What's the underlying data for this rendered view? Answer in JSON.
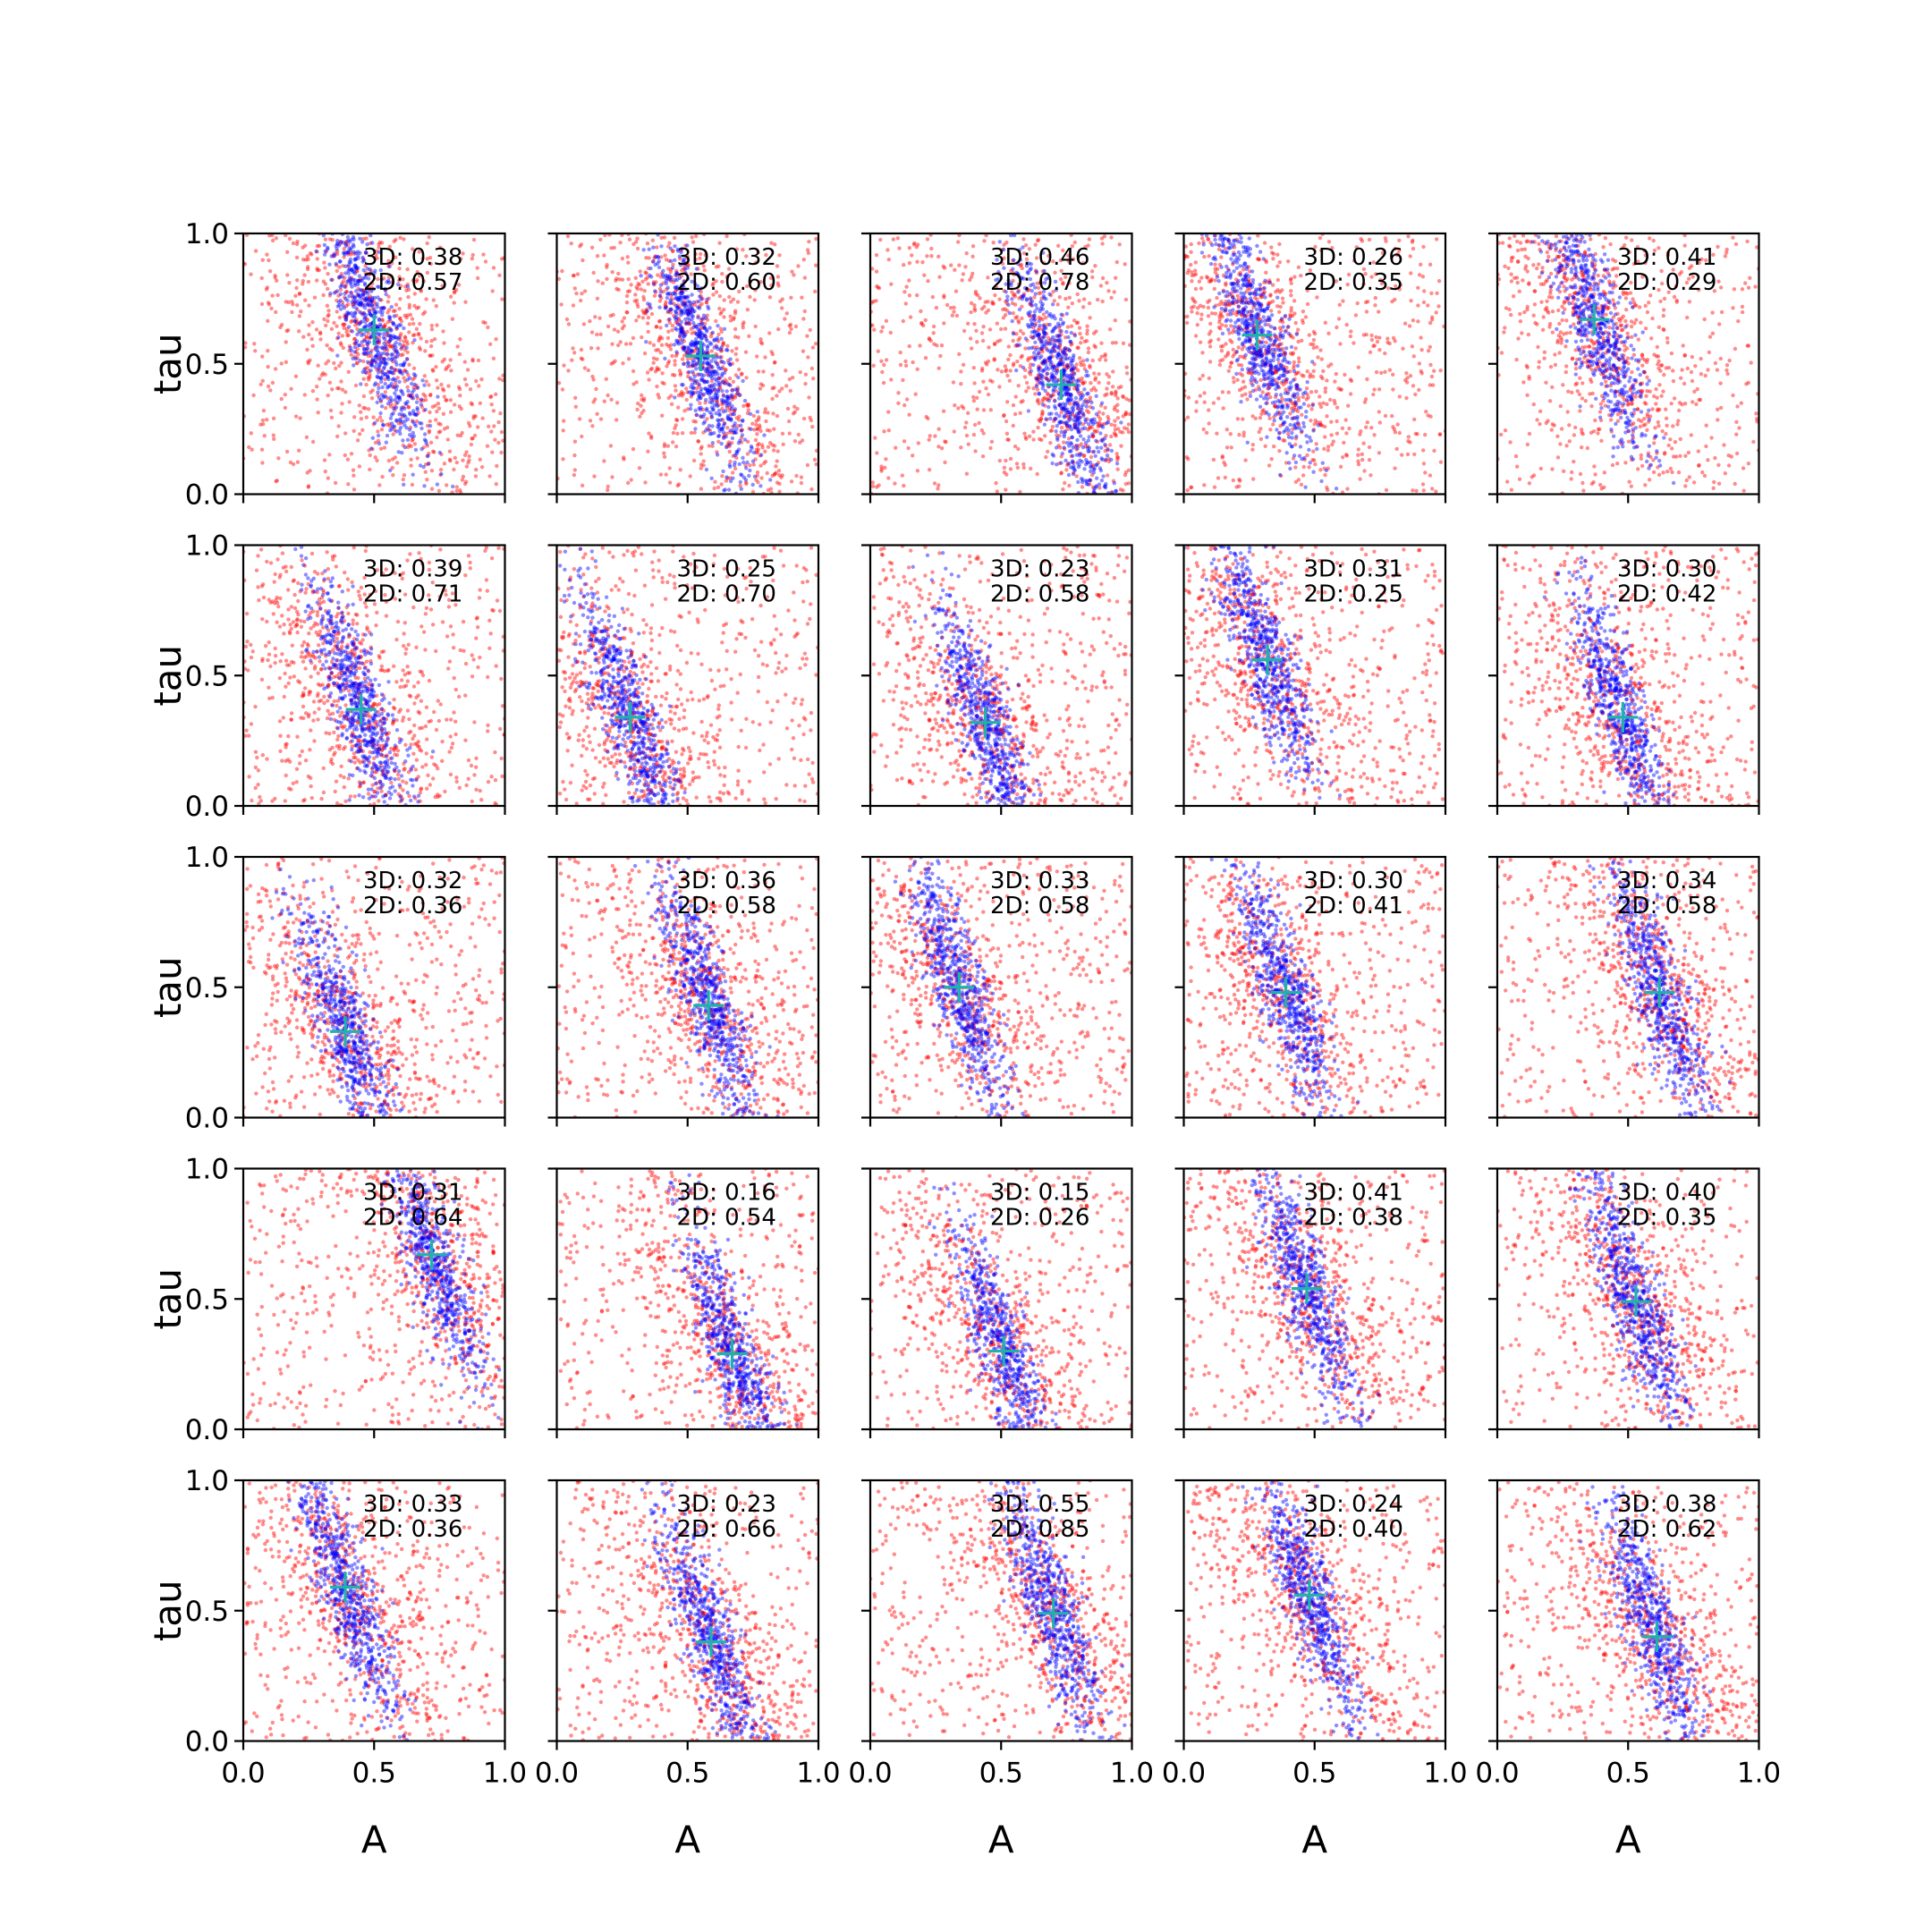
{
  "figure": {
    "xlabel": "A",
    "ylabel": "tau",
    "xticks": [
      "0.0",
      "0.5",
      "1.0"
    ],
    "yticks": [
      "0.0",
      "0.5",
      "1.0"
    ]
  },
  "colors": {
    "series_2d": "#ff0000",
    "series_3d": "#0000ff",
    "marker": "#20b2aa",
    "axes": "#000000"
  },
  "chart_data": {
    "type": "scatter",
    "layout": "5x5 grid of panels, shared axes",
    "xlabel": "A",
    "ylabel": "tau",
    "xlim": [
      0,
      1
    ],
    "ylim": [
      0,
      1
    ],
    "legend": "none",
    "grid": false,
    "series": [
      {
        "color": "red",
        "marker": "dot",
        "alpha": 0.5
      },
      {
        "color": "blue",
        "marker": "dot",
        "alpha": 0.5
      },
      {
        "color": "lightseagreen",
        "marker": "plus"
      }
    ],
    "panels": [
      {
        "row": 0,
        "col": 0,
        "label_3d": "3D: 0.38",
        "label_2d": "2D: 0.57",
        "marker": [
          0.5,
          0.63
        ]
      },
      {
        "row": 0,
        "col": 1,
        "label_3d": "3D: 0.32",
        "label_2d": "2D: 0.60",
        "marker": [
          0.55,
          0.53
        ]
      },
      {
        "row": 0,
        "col": 2,
        "label_3d": "3D: 0.46",
        "label_2d": "2D: 0.78",
        "marker": [
          0.73,
          0.42
        ]
      },
      {
        "row": 0,
        "col": 3,
        "label_3d": "3D: 0.26",
        "label_2d": "2D: 0.35",
        "marker": [
          0.28,
          0.61
        ]
      },
      {
        "row": 0,
        "col": 4,
        "label_3d": "3D: 0.41",
        "label_2d": "2D: 0.29",
        "marker": [
          0.37,
          0.67
        ]
      },
      {
        "row": 1,
        "col": 0,
        "label_3d": "3D: 0.39",
        "label_2d": "2D: 0.71",
        "marker": [
          0.45,
          0.37
        ]
      },
      {
        "row": 1,
        "col": 1,
        "label_3d": "3D: 0.25",
        "label_2d": "2D: 0.70",
        "marker": [
          0.28,
          0.34
        ]
      },
      {
        "row": 1,
        "col": 2,
        "label_3d": "3D: 0.23",
        "label_2d": "2D: 0.58",
        "marker": [
          0.44,
          0.32
        ]
      },
      {
        "row": 1,
        "col": 3,
        "label_3d": "3D: 0.31",
        "label_2d": "2D: 0.25",
        "marker": [
          0.32,
          0.56
        ]
      },
      {
        "row": 1,
        "col": 4,
        "label_3d": "3D: 0.30",
        "label_2d": "2D: 0.42",
        "marker": [
          0.48,
          0.34
        ]
      },
      {
        "row": 2,
        "col": 0,
        "label_3d": "3D: 0.32",
        "label_2d": "2D: 0.36",
        "marker": [
          0.39,
          0.33
        ]
      },
      {
        "row": 2,
        "col": 1,
        "label_3d": "3D: 0.36",
        "label_2d": "2D: 0.58",
        "marker": [
          0.58,
          0.43
        ]
      },
      {
        "row": 2,
        "col": 2,
        "label_3d": "3D: 0.33",
        "label_2d": "2D: 0.58",
        "marker": [
          0.34,
          0.5
        ]
      },
      {
        "row": 2,
        "col": 3,
        "label_3d": "3D: 0.30",
        "label_2d": "2D: 0.41",
        "marker": [
          0.39,
          0.48
        ]
      },
      {
        "row": 2,
        "col": 4,
        "label_3d": "3D: 0.34",
        "label_2d": "2D: 0.58",
        "marker": [
          0.62,
          0.48
        ]
      },
      {
        "row": 3,
        "col": 0,
        "label_3d": "3D: 0.31",
        "label_2d": "2D: 0.64",
        "marker": [
          0.72,
          0.67
        ]
      },
      {
        "row": 3,
        "col": 1,
        "label_3d": "3D: 0.16",
        "label_2d": "2D: 0.54",
        "marker": [
          0.67,
          0.29
        ]
      },
      {
        "row": 3,
        "col": 2,
        "label_3d": "3D: 0.15",
        "label_2d": "2D: 0.26",
        "marker": [
          0.51,
          0.3
        ]
      },
      {
        "row": 3,
        "col": 3,
        "label_3d": "3D: 0.41",
        "label_2d": "2D: 0.38",
        "marker": [
          0.47,
          0.54
        ]
      },
      {
        "row": 3,
        "col": 4,
        "label_3d": "3D: 0.40",
        "label_2d": "2D: 0.35",
        "marker": [
          0.53,
          0.49
        ]
      },
      {
        "row": 4,
        "col": 0,
        "label_3d": "3D: 0.33",
        "label_2d": "2D: 0.36",
        "marker": [
          0.39,
          0.59
        ]
      },
      {
        "row": 4,
        "col": 1,
        "label_3d": "3D: 0.23",
        "label_2d": "2D: 0.66",
        "marker": [
          0.59,
          0.38
        ]
      },
      {
        "row": 4,
        "col": 2,
        "label_3d": "3D: 0.55",
        "label_2d": "2D: 0.85",
        "marker": [
          0.7,
          0.49
        ]
      },
      {
        "row": 4,
        "col": 3,
        "label_3d": "3D: 0.24",
        "label_2d": "2D: 0.40",
        "marker": [
          0.48,
          0.56
        ]
      },
      {
        "row": 4,
        "col": 4,
        "label_3d": "3D: 0.38",
        "label_2d": "2D: 0.62",
        "marker": [
          0.61,
          0.4
        ]
      }
    ]
  }
}
